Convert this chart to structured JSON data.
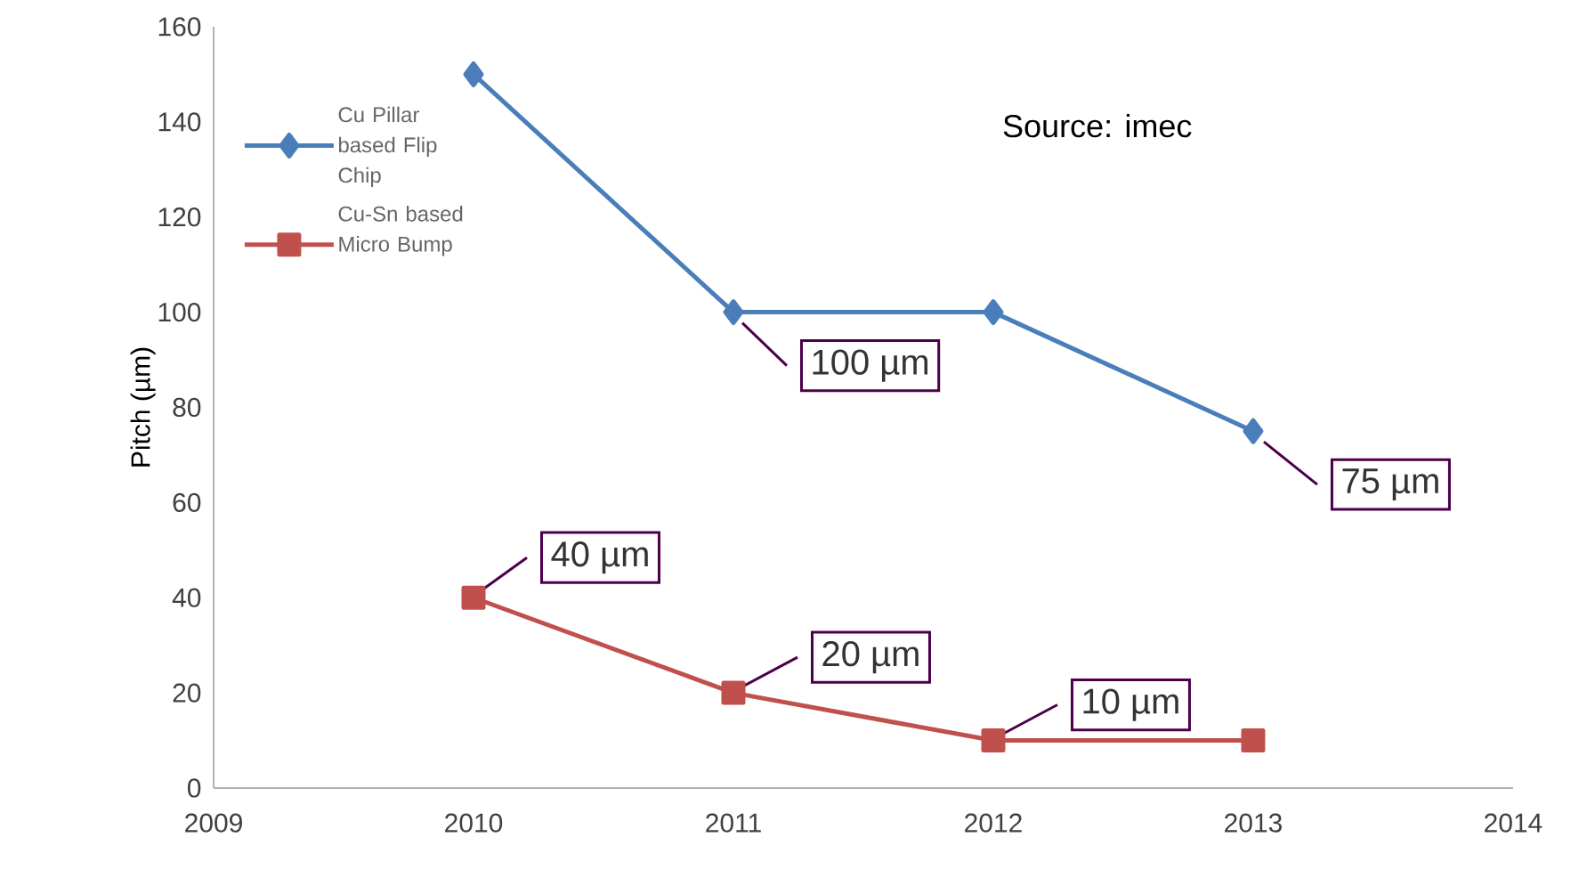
{
  "chart_data": {
    "type": "line",
    "ylabel": "Pitch (µm)",
    "x": [
      2010,
      2011,
      2012,
      2013
    ],
    "series": [
      {
        "name": "Cu Pillar based Flip Chip",
        "color": "#4a7ebb",
        "marker": "diamond",
        "values": [
          150,
          100,
          100,
          75
        ]
      },
      {
        "name": "Cu-Sn based Micro Bump",
        "color": "#c0504d",
        "marker": "square",
        "values": [
          40,
          20,
          10,
          10
        ]
      }
    ],
    "xlim": [
      2009,
      2014
    ],
    "xticks": [
      2009,
      2010,
      2011,
      2012,
      2013,
      2014
    ],
    "ylim": [
      0,
      160
    ],
    "yticks": [
      0,
      20,
      40,
      60,
      80,
      100,
      120,
      140,
      160
    ],
    "grid": false,
    "legend": "top left",
    "line_style": "solid",
    "annotations": [
      {
        "text": "100 µm",
        "x": 2011,
        "y": 100
      },
      {
        "text": "75 µm",
        "x": 2013,
        "y": 75
      },
      {
        "text": "40 µm",
        "x": 2010,
        "y": 40
      },
      {
        "text": "20 µm",
        "x": 2011,
        "y": 20
      },
      {
        "text": "10 µm",
        "x": 2012,
        "y": 10
      },
      "Source: imec"
    ]
  }
}
